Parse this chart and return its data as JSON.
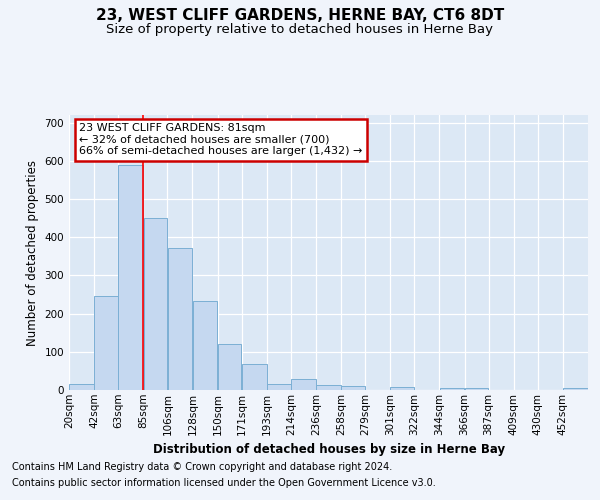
{
  "title": "23, WEST CLIFF GARDENS, HERNE BAY, CT6 8DT",
  "subtitle": "Size of property relative to detached houses in Herne Bay",
  "xlabel": "Distribution of detached houses by size in Herne Bay",
  "ylabel": "Number of detached properties",
  "categories": [
    "20sqm",
    "42sqm",
    "63sqm",
    "85sqm",
    "106sqm",
    "128sqm",
    "150sqm",
    "171sqm",
    "193sqm",
    "214sqm",
    "236sqm",
    "258sqm",
    "279sqm",
    "301sqm",
    "322sqm",
    "344sqm",
    "366sqm",
    "387sqm",
    "409sqm",
    "430sqm",
    "452sqm"
  ],
  "values": [
    15,
    245,
    590,
    450,
    372,
    232,
    120,
    68,
    17,
    29,
    13,
    10,
    0,
    9,
    0,
    5,
    5,
    0,
    0,
    0,
    5
  ],
  "bar_color": "#c5d8f0",
  "bar_edge_color": "#7bafd4",
  "bin_edges": [
    20,
    42,
    63,
    85,
    106,
    128,
    150,
    171,
    193,
    214,
    236,
    258,
    279,
    301,
    322,
    344,
    366,
    387,
    409,
    430,
    452,
    474
  ],
  "annotation_text": "23 WEST CLIFF GARDENS: 81sqm\n← 32% of detached houses are smaller (700)\n66% of semi-detached houses are larger (1,432) →",
  "annotation_box_color": "#ffffff",
  "annotation_box_edge": "#cc0000",
  "ylim": [
    0,
    720
  ],
  "yticks": [
    0,
    100,
    200,
    300,
    400,
    500,
    600,
    700
  ],
  "footer_line1": "Contains HM Land Registry data © Crown copyright and database right 2024.",
  "footer_line2": "Contains public sector information licensed under the Open Government Licence v3.0.",
  "background_color": "#f0f4fb",
  "plot_bg_color": "#dce8f5",
  "grid_color": "#ffffff",
  "title_fontsize": 11,
  "subtitle_fontsize": 9.5,
  "axis_label_fontsize": 8.5,
  "tick_fontsize": 7.5,
  "footer_fontsize": 7.0,
  "red_line_x": 85
}
